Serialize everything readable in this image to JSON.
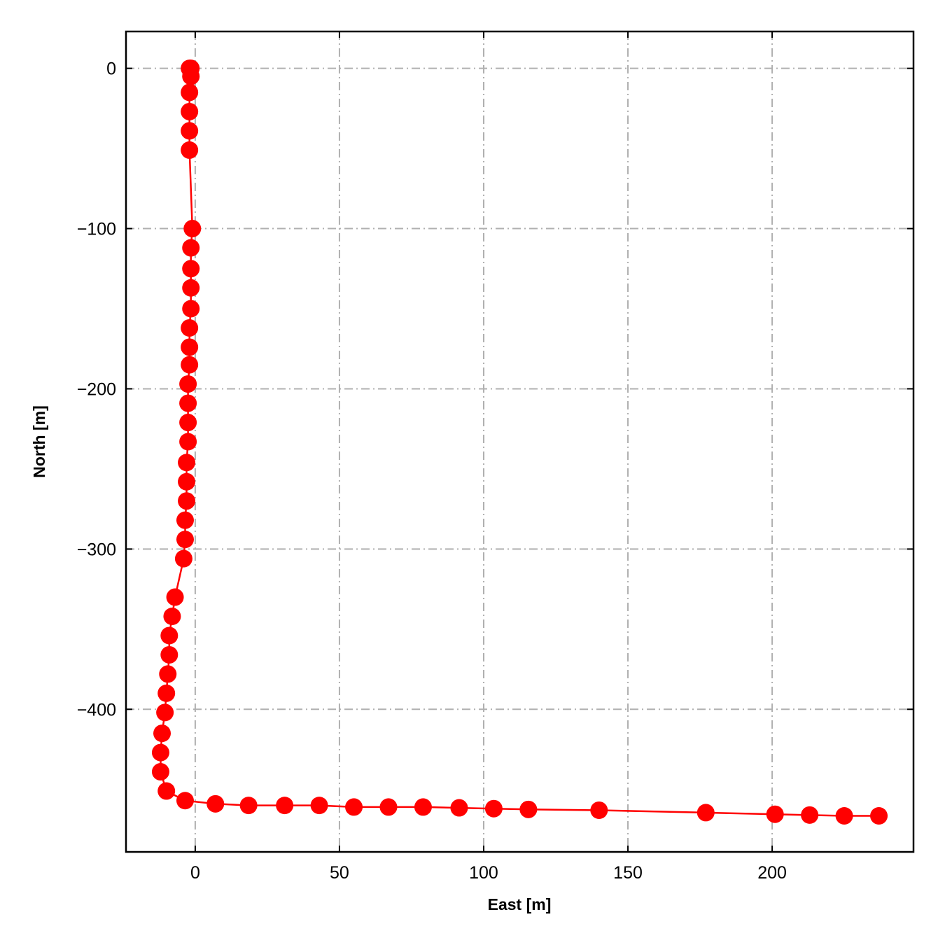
{
  "chart_data": {
    "type": "line",
    "title": "",
    "xlabel": "East [m]",
    "ylabel": "North [m]",
    "xlim": [
      -24,
      249
    ],
    "ylim": [
      -489,
      23
    ],
    "xticks": [
      0,
      50,
      100,
      150,
      200
    ],
    "yticks": [
      0,
      -100,
      -200,
      -300,
      -400
    ],
    "xtick_labels": [
      "0",
      "50",
      "100",
      "150",
      "200"
    ],
    "ytick_labels": [
      "0",
      "−100",
      "−200",
      "−300",
      "−400"
    ],
    "grid": true,
    "series": [
      {
        "color": "#ff0000",
        "marker": "circle",
        "x": [
          -2,
          -1.5,
          -1.5,
          -2,
          -2,
          -2,
          -2,
          -1,
          -1.5,
          -1.5,
          -1.5,
          -1.5,
          -2,
          -2,
          -2,
          -2.5,
          -2.5,
          -2.5,
          -2.5,
          -3,
          -3,
          -3,
          -3.5,
          -3.5,
          -4,
          -7,
          -8,
          -9,
          -9,
          -9.5,
          -10,
          -10.5,
          -11.5,
          -12,
          -12,
          -10,
          -3.5,
          7,
          18.5,
          31,
          43,
          55,
          67,
          79,
          91.5,
          103.5,
          115.5,
          140,
          177,
          201,
          213,
          225,
          237
        ],
        "y": [
          0,
          0,
          -5,
          -15,
          -27,
          -39,
          -51,
          -100,
          -112,
          -125,
          -137,
          -150,
          -162,
          -174,
          -185,
          -197,
          -209,
          -221,
          -233,
          -246,
          -258,
          -270,
          -282,
          -294,
          -306,
          -330,
          -342,
          -354,
          -366,
          -378,
          -390,
          -402,
          -415,
          -427,
          -439,
          -451,
          -457,
          -459,
          -460,
          -460,
          -460,
          -461,
          -461,
          -461,
          -461.5,
          -462,
          -462.5,
          -463,
          -464.5,
          -465.5,
          -466,
          -466.5,
          -466.5
        ]
      }
    ]
  }
}
